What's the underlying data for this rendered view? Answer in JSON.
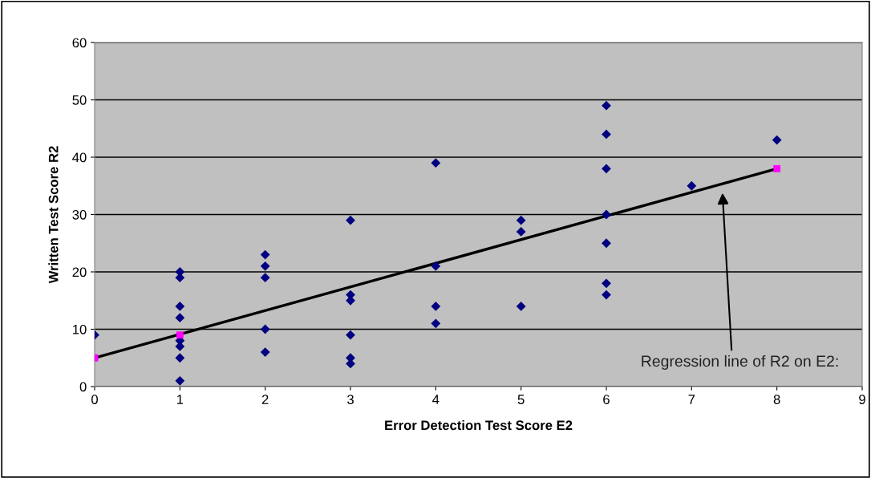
{
  "chart_data": {
    "type": "scatter",
    "xlabel": "Error Detection Test Score E2",
    "ylabel": "Written Test Score R2",
    "series": [
      {
        "color": "#000080",
        "marker": "diamond",
        "x": [
          0,
          1,
          1,
          1,
          1,
          1,
          1,
          1,
          1,
          2,
          2,
          2,
          2,
          2,
          3,
          3,
          3,
          3,
          3,
          3,
          4,
          4,
          4,
          4,
          5,
          5,
          5,
          6,
          6,
          6,
          6,
          6,
          6,
          6,
          7,
          8
        ],
        "values": [
          9,
          20,
          19,
          14,
          12,
          8,
          7,
          5,
          1,
          23,
          21,
          19,
          10,
          6,
          29,
          16,
          15,
          9,
          5,
          4,
          39,
          21,
          14,
          11,
          29,
          27,
          14,
          49,
          44,
          38,
          30,
          25,
          18,
          16,
          35,
          43
        ]
      },
      {
        "type": "line",
        "color": "#000000",
        "marker": "none",
        "line_style": "solid",
        "x": [
          0,
          8
        ],
        "values": [
          5,
          38
        ]
      },
      {
        "type": "scatter",
        "color": "#ff00ff",
        "marker": "square",
        "x": [
          0,
          1,
          8
        ],
        "values": [
          5,
          9,
          38
        ]
      }
    ],
    "xlim": [
      0,
      9
    ],
    "xticks": [
      0,
      1,
      2,
      3,
      4,
      5,
      6,
      7,
      8,
      9
    ],
    "ylim": [
      0,
      60
    ],
    "yticks": [
      0,
      10,
      20,
      30,
      40,
      50,
      60
    ],
    "grid": "y",
    "legend": false,
    "annotations": [
      "Regression line of R2 on E2:"
    ]
  }
}
